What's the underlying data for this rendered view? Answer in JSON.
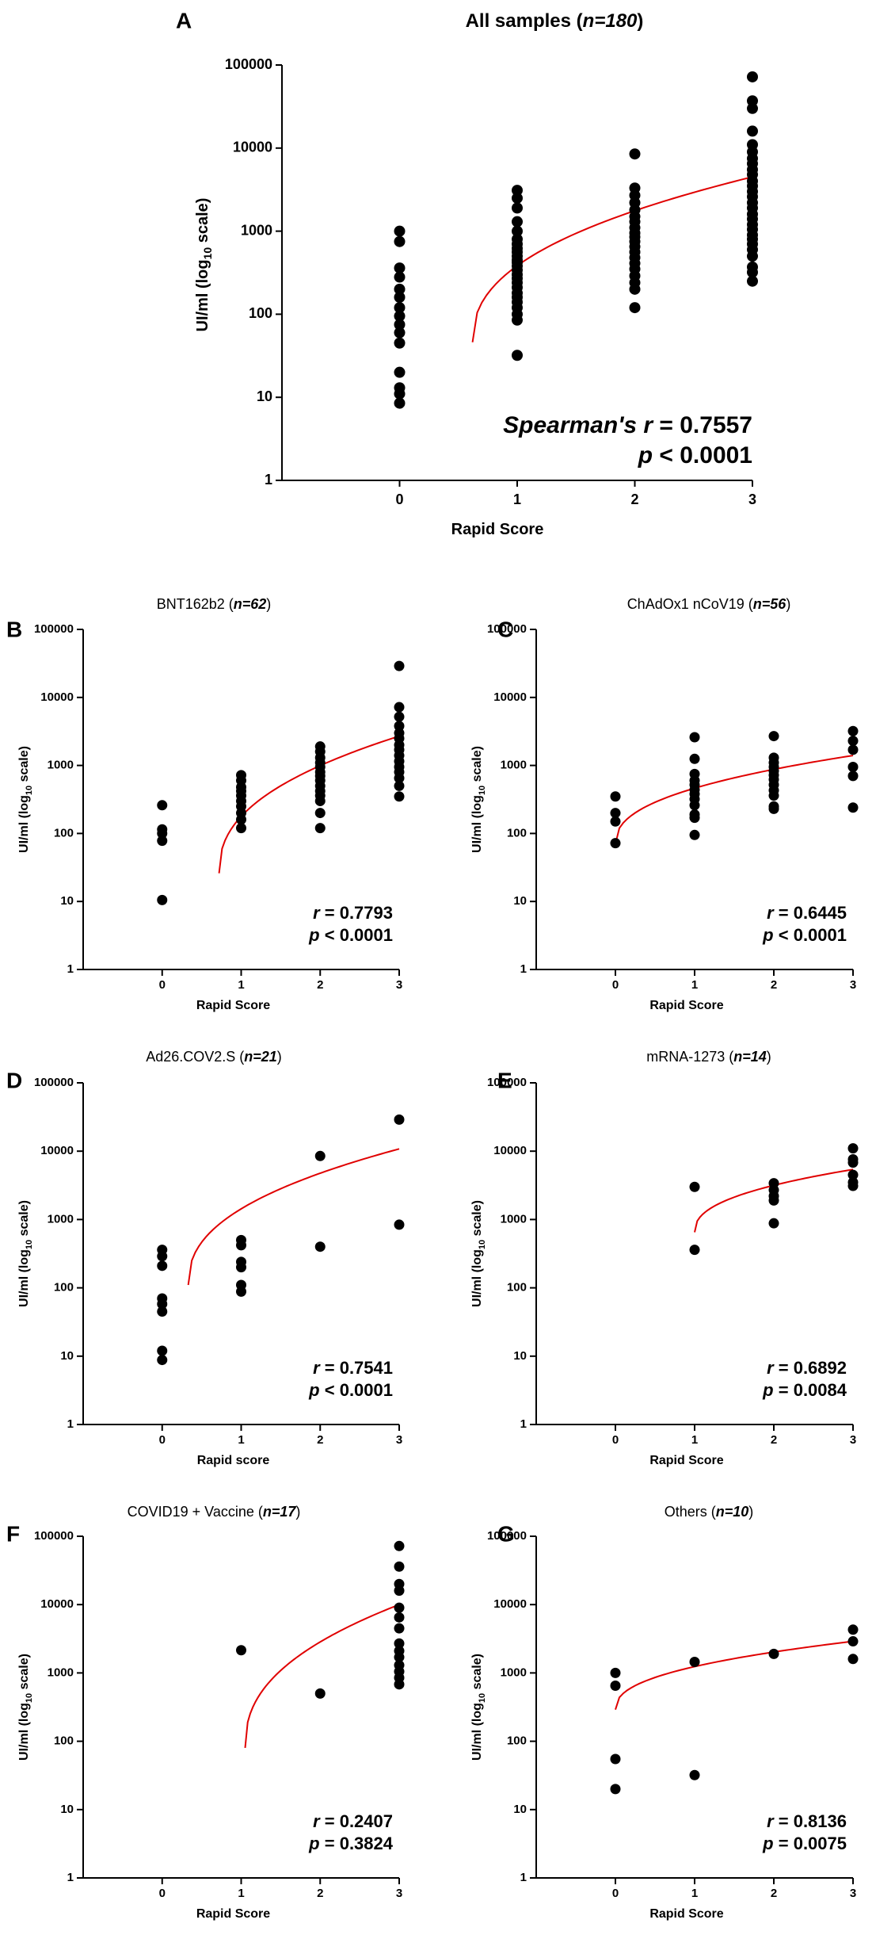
{
  "chart_data": [
    {
      "id": "A",
      "type": "scatter",
      "title": "All samples",
      "n_label": "n=180",
      "xlabel": "Rapid Score",
      "ylabel": "UI/ml (log10 scale)",
      "yscale": "log",
      "ylim": [
        1,
        100000
      ],
      "xlim": [
        -1,
        3
      ],
      "xticks": [
        0,
        1,
        2,
        3
      ],
      "yticks": [
        "1",
        "10",
        "100",
        "1000",
        "10000",
        "100000"
      ],
      "stat_label": "Spearman's r",
      "r": "0.7557",
      "p_label": "p",
      "p_op": "<",
      "p": "0.0001",
      "fit": {
        "model": "log",
        "x_start": 0.62,
        "x_end": 3,
        "y_start": 46,
        "y_end": 4500
      },
      "points": [
        [
          0,
          1000
        ],
        [
          0,
          750
        ],
        [
          0,
          360
        ],
        [
          0,
          280
        ],
        [
          0,
          200
        ],
        [
          0,
          160
        ],
        [
          0,
          120
        ],
        [
          0,
          95
        ],
        [
          0,
          75
        ],
        [
          0,
          60
        ],
        [
          0,
          45
        ],
        [
          0,
          20
        ],
        [
          0,
          13
        ],
        [
          0,
          11
        ],
        [
          0,
          8.5
        ],
        [
          1,
          3100
        ],
        [
          1,
          2500
        ],
        [
          1,
          1900
        ],
        [
          1,
          1300
        ],
        [
          1,
          1000
        ],
        [
          1,
          800
        ],
        [
          1,
          700
        ],
        [
          1,
          620
        ],
        [
          1,
          560
        ],
        [
          1,
          500
        ],
        [
          1,
          450
        ],
        [
          1,
          420
        ],
        [
          1,
          380
        ],
        [
          1,
          340
        ],
        [
          1,
          300
        ],
        [
          1,
          270
        ],
        [
          1,
          240
        ],
        [
          1,
          210
        ],
        [
          1,
          180
        ],
        [
          1,
          160
        ],
        [
          1,
          140
        ],
        [
          1,
          120
        ],
        [
          1,
          100
        ],
        [
          1,
          85
        ],
        [
          1,
          32
        ],
        [
          2,
          8500
        ],
        [
          2,
          3300
        ],
        [
          2,
          2700
        ],
        [
          2,
          2200
        ],
        [
          2,
          1800
        ],
        [
          2,
          1500
        ],
        [
          2,
          1300
        ],
        [
          2,
          1100
        ],
        [
          2,
          950
        ],
        [
          2,
          850
        ],
        [
          2,
          750
        ],
        [
          2,
          650
        ],
        [
          2,
          560
        ],
        [
          2,
          480
        ],
        [
          2,
          410
        ],
        [
          2,
          350
        ],
        [
          2,
          290
        ],
        [
          2,
          240
        ],
        [
          2,
          200
        ],
        [
          2,
          120
        ],
        [
          3,
          72000
        ],
        [
          3,
          37000
        ],
        [
          3,
          30000
        ],
        [
          3,
          16000
        ],
        [
          3,
          11000
        ],
        [
          3,
          9000
        ],
        [
          3,
          7500
        ],
        [
          3,
          6500
        ],
        [
          3,
          5500
        ],
        [
          3,
          4800
        ],
        [
          3,
          4000
        ],
        [
          3,
          3500
        ],
        [
          3,
          3000
        ],
        [
          3,
          2600
        ],
        [
          3,
          2200
        ],
        [
          3,
          1900
        ],
        [
          3,
          1600
        ],
        [
          3,
          1400
        ],
        [
          3,
          1200
        ],
        [
          3,
          1050
        ],
        [
          3,
          900
        ],
        [
          3,
          800
        ],
        [
          3,
          700
        ],
        [
          3,
          600
        ],
        [
          3,
          500
        ],
        [
          3,
          370
        ],
        [
          3,
          320
        ],
        [
          3,
          250
        ]
      ]
    },
    {
      "id": "B",
      "type": "scatter",
      "title": "BNT162b2",
      "n_label": "n=62",
      "xlabel": "Rapid Score",
      "ylabel": "UI/ml (log10 scale)",
      "yscale": "log",
      "ylim": [
        1,
        100000
      ],
      "xlim": [
        -1,
        3
      ],
      "xticks": [
        0,
        1,
        2,
        3
      ],
      "yticks": [
        "1",
        "10",
        "100",
        "1000",
        "10000",
        "100000"
      ],
      "stat_label": "r",
      "r": "0.7793",
      "p_label": "p",
      "p_op": "<",
      "p": "0.0001",
      "fit": {
        "model": "log",
        "x_start": 0.72,
        "x_end": 3,
        "y_start": 26,
        "y_end": 2700
      },
      "points": [
        [
          0,
          260
        ],
        [
          0,
          115
        ],
        [
          0,
          100
        ],
        [
          0,
          78
        ],
        [
          0,
          10.5
        ],
        [
          1,
          720
        ],
        [
          1,
          600
        ],
        [
          1,
          480
        ],
        [
          1,
          420
        ],
        [
          1,
          360
        ],
        [
          1,
          300
        ],
        [
          1,
          250
        ],
        [
          1,
          200
        ],
        [
          1,
          160
        ],
        [
          1,
          120
        ],
        [
          2,
          1900
        ],
        [
          2,
          1600
        ],
        [
          2,
          1300
        ],
        [
          2,
          1100
        ],
        [
          2,
          950
        ],
        [
          2,
          800
        ],
        [
          2,
          700
        ],
        [
          2,
          600
        ],
        [
          2,
          500
        ],
        [
          2,
          420
        ],
        [
          2,
          360
        ],
        [
          2,
          300
        ],
        [
          2,
          200
        ],
        [
          2,
          120
        ],
        [
          3,
          29000
        ],
        [
          3,
          7200
        ],
        [
          3,
          5200
        ],
        [
          3,
          3800
        ],
        [
          3,
          3000
        ],
        [
          3,
          2500
        ],
        [
          3,
          2000
        ],
        [
          3,
          1700
        ],
        [
          3,
          1400
        ],
        [
          3,
          1150
        ],
        [
          3,
          950
        ],
        [
          3,
          800
        ],
        [
          3,
          650
        ],
        [
          3,
          500
        ],
        [
          3,
          350
        ]
      ]
    },
    {
      "id": "C",
      "type": "scatter",
      "title": "ChAdOx1 nCoV19",
      "n_label": "n=56",
      "xlabel": "Rapid Score",
      "ylabel": "UI/ml (log10 scale)",
      "yscale": "log",
      "ylim": [
        1,
        100000
      ],
      "xlim": [
        -1,
        3
      ],
      "xticks": [
        0,
        1,
        2,
        3
      ],
      "yticks": [
        "1",
        "10",
        "100",
        "1000",
        "10000",
        "100000"
      ],
      "stat_label": "r",
      "r": "0.6445",
      "p_label": "p",
      "p_op": "<",
      "p": "0.0001",
      "fit": {
        "model": "log",
        "x_start": 0.0,
        "x_end": 3,
        "y_start": 70,
        "y_end": 1400
      },
      "points": [
        [
          0,
          350
        ],
        [
          0,
          200
        ],
        [
          0,
          150
        ],
        [
          0,
          72
        ],
        [
          1,
          2600
        ],
        [
          1,
          1250
        ],
        [
          1,
          750
        ],
        [
          1,
          600
        ],
        [
          1,
          520
        ],
        [
          1,
          440
        ],
        [
          1,
          380
        ],
        [
          1,
          320
        ],
        [
          1,
          260
        ],
        [
          1,
          190
        ],
        [
          1,
          170
        ],
        [
          1,
          95
        ],
        [
          2,
          2700
        ],
        [
          2,
          1300
        ],
        [
          2,
          1100
        ],
        [
          2,
          950
        ],
        [
          2,
          830
        ],
        [
          2,
          720
        ],
        [
          2,
          620
        ],
        [
          2,
          520
        ],
        [
          2,
          430
        ],
        [
          2,
          360
        ],
        [
          2,
          250
        ],
        [
          2,
          230
        ],
        [
          3,
          3200
        ],
        [
          3,
          2300
        ],
        [
          3,
          1700
        ],
        [
          3,
          950
        ],
        [
          3,
          700
        ],
        [
          3,
          240
        ]
      ]
    },
    {
      "id": "D",
      "type": "scatter",
      "title": "Ad26.COV2.S",
      "n_label": "n=21",
      "xlabel": "Rapid score",
      "ylabel": "UI/ml (log10 scale)",
      "yscale": "log",
      "ylim": [
        1,
        100000
      ],
      "xlim": [
        -1,
        3
      ],
      "xticks": [
        0,
        1,
        2,
        3
      ],
      "yticks": [
        "1",
        "10",
        "100",
        "1000",
        "10000",
        "100000"
      ],
      "stat_label": "r",
      "r": "0.7541",
      "p_label": "p",
      "p_op": "<",
      "p": "0.0001",
      "fit": {
        "model": "log",
        "x_start": 0.33,
        "x_end": 3,
        "y_start": 110,
        "y_end": 10800
      },
      "points": [
        [
          0,
          360
        ],
        [
          0,
          290
        ],
        [
          0,
          210
        ],
        [
          0,
          70
        ],
        [
          0,
          58
        ],
        [
          0,
          45
        ],
        [
          0,
          12
        ],
        [
          0,
          8.8
        ],
        [
          1,
          500
        ],
        [
          1,
          420
        ],
        [
          1,
          240
        ],
        [
          1,
          200
        ],
        [
          1,
          110
        ],
        [
          1,
          88
        ],
        [
          2,
          8500
        ],
        [
          2,
          400
        ],
        [
          3,
          29000
        ],
        [
          3,
          840
        ]
      ]
    },
    {
      "id": "E",
      "type": "scatter",
      "title": "mRNA-1273",
      "n_label": "n=14",
      "xlabel": "Rapid Score",
      "ylabel": "UI/ml (log10 scale)",
      "yscale": "log",
      "ylim": [
        1,
        100000
      ],
      "xlim": [
        -1,
        3
      ],
      "xticks": [
        0,
        1,
        2,
        3
      ],
      "yticks": [
        "1",
        "10",
        "100",
        "1000",
        "10000",
        "100000"
      ],
      "stat_label": "r",
      "r": "0.6892",
      "p_label": "p",
      "p_op": "=",
      "p": "0.0084",
      "fit": {
        "model": "log",
        "x_start": 1.0,
        "x_end": 3,
        "y_start": 650,
        "y_end": 5400
      },
      "points": [
        [
          1,
          3000
        ],
        [
          1,
          360
        ],
        [
          2,
          3400
        ],
        [
          2,
          2700
        ],
        [
          2,
          2200
        ],
        [
          2,
          1900
        ],
        [
          2,
          880
        ],
        [
          3,
          11000
        ],
        [
          3,
          7600
        ],
        [
          3,
          6800
        ],
        [
          3,
          4500
        ],
        [
          3,
          3500
        ],
        [
          3,
          3100
        ]
      ]
    },
    {
      "id": "F",
      "type": "scatter",
      "title": "COVID19 + Vaccine",
      "n_label": "n=17",
      "xlabel": "Rapid Score",
      "ylabel": "UI/ml (log10 scale)",
      "yscale": "log",
      "ylim": [
        1,
        100000
      ],
      "xlim": [
        -1,
        3
      ],
      "xticks": [
        0,
        1,
        2,
        3
      ],
      "yticks": [
        "1",
        "10",
        "100",
        "1000",
        "10000",
        "100000"
      ],
      "stat_label": "r",
      "r": "0.2407",
      "p_label": "p",
      "p_op": "=",
      "p": "0.3824",
      "fit": {
        "model": "log",
        "x_start": 1.05,
        "x_end": 3,
        "y_start": 80,
        "y_end": 10000
      },
      "points": [
        [
          1,
          2150
        ],
        [
          2,
          500
        ],
        [
          3,
          72000
        ],
        [
          3,
          36000
        ],
        [
          3,
          20000
        ],
        [
          3,
          16000
        ],
        [
          3,
          9000
        ],
        [
          3,
          6500
        ],
        [
          3,
          4500
        ],
        [
          3,
          2700
        ],
        [
          3,
          2100
        ],
        [
          3,
          1700
        ],
        [
          3,
          1300
        ],
        [
          3,
          1050
        ],
        [
          3,
          850
        ],
        [
          3,
          680
        ]
      ]
    },
    {
      "id": "G",
      "type": "scatter",
      "title": "Others",
      "n_label": "n=10",
      "xlabel": "Rapid Score",
      "ylabel": "UI/ml (log10 scale)",
      "yscale": "log",
      "ylim": [
        1,
        100000
      ],
      "xlim": [
        -1,
        3
      ],
      "xticks": [
        0,
        1,
        2,
        3
      ],
      "yticks": [
        "1",
        "10",
        "100",
        "1000",
        "10000",
        "100000"
      ],
      "stat_label": "r",
      "r": "0.8136",
      "p_label": "p",
      "p_op": "=",
      "p": "0.0075",
      "fit": {
        "model": "log",
        "x_start": 0.0,
        "x_end": 3,
        "y_start": 290,
        "y_end": 2900
      },
      "points": [
        [
          0,
          1000
        ],
        [
          0,
          650
        ],
        [
          0,
          55
        ],
        [
          0,
          20
        ],
        [
          1,
          1450
        ],
        [
          1,
          32
        ],
        [
          2,
          1900
        ],
        [
          3,
          4300
        ],
        [
          3,
          2900
        ],
        [
          3,
          1600
        ]
      ]
    }
  ]
}
